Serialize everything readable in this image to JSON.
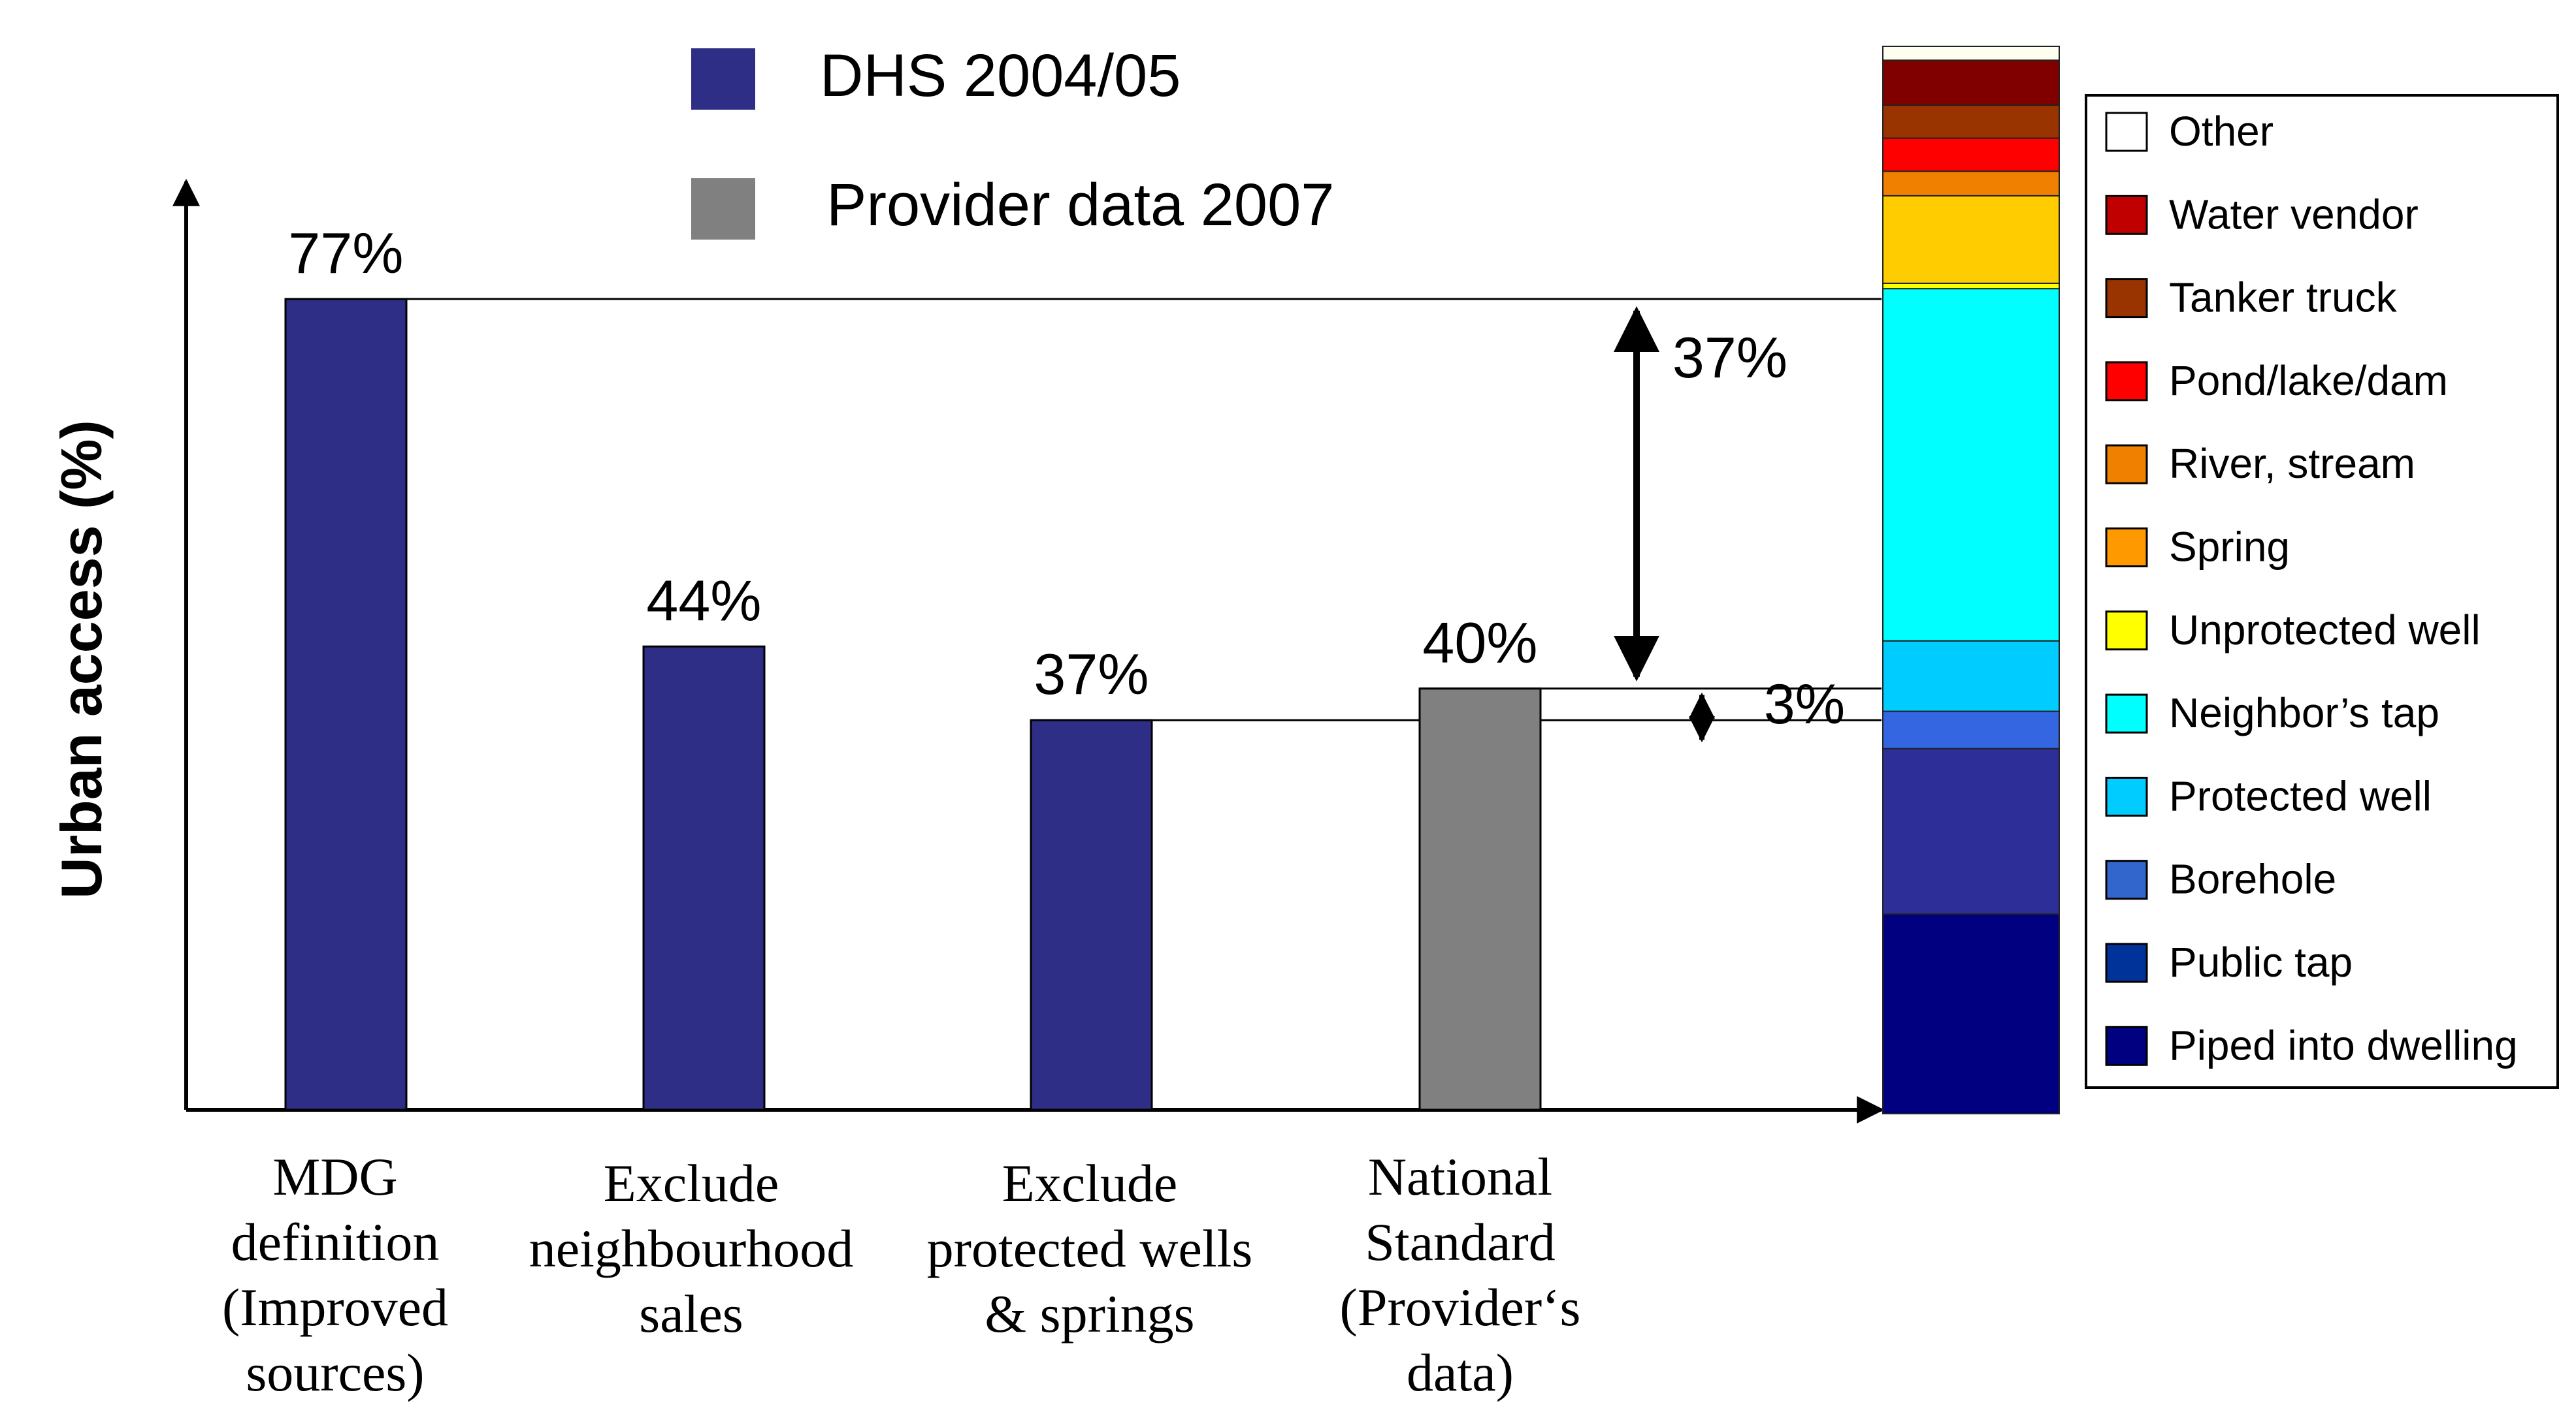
{
  "chart_data": {
    "type": "bar",
    "ylabel": "Urban access (%)",
    "ylim": [
      0,
      100
    ],
    "legend": [
      {
        "name": "DHS 2004/05",
        "color": "#2E2E86"
      },
      {
        "name": "Provider data 2007",
        "color": "#808080"
      }
    ],
    "categories": [
      {
        "lines": [
          "MDG",
          "definition",
          "(Improved",
          "sources)"
        ],
        "value": 77,
        "label": "77%",
        "series": "DHS 2004/05",
        "color": "#2E2E86"
      },
      {
        "lines": [
          "Exclude",
          "neighbourhood",
          "sales"
        ],
        "value": 44,
        "label": "44%",
        "series": "DHS 2004/05",
        "color": "#2E2E86"
      },
      {
        "lines": [
          "Exclude",
          "protected wells",
          "& springs"
        ],
        "value": 37,
        "label": "37%",
        "series": "DHS 2004/05",
        "color": "#2E2E86"
      },
      {
        "lines": [
          "National",
          "Standard",
          "(Provider‘s",
          "data)"
        ],
        "value": 40,
        "label": "40%",
        "series": "Provider data 2007",
        "color": "#808080"
      }
    ],
    "annotations": [
      {
        "text": "37%",
        "from_value": 77,
        "to_value": 40
      },
      {
        "text": "3%",
        "from_value": 40,
        "to_value": 37
      }
    ],
    "stacked_bar": {
      "segments": [
        {
          "name": "Piped into dwelling",
          "color": "#000080",
          "value": 18.7
        },
        {
          "name": "Public tap",
          "color": "#2E2E99",
          "value": 15.5
        },
        {
          "name": "Borehole",
          "color": "#3366E0",
          "value": 3.5
        },
        {
          "name": "Protected well",
          "color": "#00CCFF",
          "value": 6.6
        },
        {
          "name": "Neighbor’s tap",
          "color": "#00FFFF",
          "value": 33.0
        },
        {
          "name": "Unprotected well",
          "color": "#FFFF00",
          "value": 0.5
        },
        {
          "name": "Spring",
          "color": "#FFCC00",
          "value": 8.2
        },
        {
          "name": "River, stream",
          "color": "#F08000",
          "value": 2.3
        },
        {
          "name": "Pond/lake/dam",
          "color": "#FF0000",
          "value": 3.1
        },
        {
          "name": "Tanker truck",
          "color": "#993300",
          "value": 3.1
        },
        {
          "name": "Water vendor",
          "color": "#800000",
          "value": 4.2
        },
        {
          "name": "Other",
          "color": "#FFFFF0",
          "value": 1.3
        }
      ],
      "legend_order": [
        "Other",
        "Water vendor",
        "Tanker truck",
        "Pond/lake/dam",
        "River, stream",
        "Spring",
        "Unprotected well",
        "Neighbor’s tap",
        "Protected well",
        "Borehole",
        "Public tap",
        "Piped into dwelling"
      ],
      "legend_colors": {
        "Other": "#FFFFFF",
        "Water vendor": "#C00000",
        "Tanker truck": "#993300",
        "Pond/lake/dam": "#FF0000",
        "River, stream": "#F08000",
        "Spring": "#FF9900",
        "Unprotected well": "#FFFF00",
        "Neighbor’s tap": "#00FFFF",
        "Protected well": "#00CCFF",
        "Borehole": "#3366CC",
        "Public tap": "#003399",
        "Piped into dwelling": "#000080"
      }
    }
  }
}
